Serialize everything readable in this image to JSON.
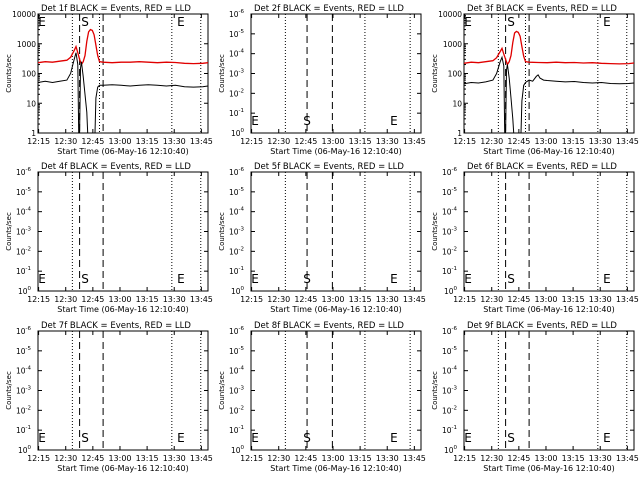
{
  "chart_data": [
    {
      "type": "line",
      "title": "Det 1f BLACK = Events, RED = LLD",
      "xlabel": "Start Time (06-May-16 12:10:40)",
      "ylabel": "Counts/sec",
      "yscale": "log",
      "xticks": [
        "12:15",
        "12:30",
        "12:45",
        "13:00",
        "13:15",
        "13:30",
        "13:45"
      ],
      "yticks": [
        "1",
        "10",
        "100",
        "1000",
        "10000"
      ],
      "ylim": [
        1,
        10000
      ],
      "xlim_min": [
        4,
        98
      ],
      "markers": {
        "dotted": [
          23,
          38,
          78,
          94
        ],
        "dashed": [
          27,
          40
        ],
        "S": 30,
        "E": 83
      },
      "series": [
        {
          "name": "RED",
          "color": "#e00000",
          "points": [
            [
              4,
              230
            ],
            [
              8,
              250
            ],
            [
              12,
              240
            ],
            [
              16,
              260
            ],
            [
              20,
              280
            ],
            [
              22,
              350
            ],
            [
              24,
              600
            ],
            [
              25,
              800
            ],
            [
              26,
              500
            ],
            [
              27,
              300
            ],
            [
              28,
              200
            ],
            [
              29,
              250
            ],
            [
              30,
              400
            ],
            [
              31,
              1200
            ],
            [
              32,
              2500
            ],
            [
              33,
              3000
            ],
            [
              34,
              2800
            ],
            [
              35,
              2000
            ],
            [
              36,
              900
            ],
            [
              37,
              400
            ],
            [
              38,
              250
            ],
            [
              40,
              240
            ],
            [
              45,
              230
            ],
            [
              50,
              240
            ],
            [
              55,
              240
            ],
            [
              60,
              250
            ],
            [
              65,
              240
            ],
            [
              70,
              230
            ],
            [
              75,
              240
            ],
            [
              80,
              235
            ],
            [
              85,
              220
            ],
            [
              90,
              215
            ],
            [
              95,
              220
            ],
            [
              98,
              230
            ]
          ]
        },
        {
          "name": "BLACK",
          "color": "#000000",
          "points": [
            [
              4,
              50
            ],
            [
              8,
              55
            ],
            [
              12,
              50
            ],
            [
              16,
              55
            ],
            [
              20,
              60
            ],
            [
              22,
              100
            ],
            [
              24,
              300
            ],
            [
              25,
              500
            ],
            [
              26,
              200
            ],
            [
              26.5,
              1
            ],
            [
              27,
              1
            ],
            [
              27.5,
              150
            ],
            [
              28,
              250
            ],
            [
              29,
              80
            ],
            [
              30,
              20
            ],
            [
              31,
              5
            ],
            [
              31.5,
              1
            ],
            [
              32,
              1
            ],
            [
              33,
              1
            ],
            [
              34,
              1
            ],
            [
              35,
              1
            ],
            [
              35.5,
              1
            ],
            [
              36,
              15
            ],
            [
              37,
              35
            ],
            [
              38,
              40
            ],
            [
              40,
              40
            ],
            [
              45,
              42
            ],
            [
              50,
              40
            ],
            [
              55,
              38
            ],
            [
              60,
              40
            ],
            [
              65,
              42
            ],
            [
              70,
              40
            ],
            [
              75,
              38
            ],
            [
              80,
              40
            ],
            [
              85,
              36
            ],
            [
              90,
              35
            ],
            [
              95,
              36
            ],
            [
              98,
              38
            ]
          ]
        }
      ]
    },
    {
      "type": "line",
      "title": "Det 2f BLACK = Events, RED = LLD",
      "xlabel": "Start Time (06-May-16 12:10:40)",
      "ylabel": "Counts/sec",
      "yscale": "log",
      "xticks": [
        "12:15",
        "12:30",
        "12:45",
        "13:00",
        "13:15",
        "13:30",
        "13:45"
      ],
      "yticks": [
        "10^0",
        "10^-1",
        "10^-2",
        "10^-3",
        "10^-4",
        "10^-5",
        "10^-6"
      ],
      "xlim_min": [
        4,
        98
      ],
      "markers": {
        "dotted": [
          23,
          67,
          92
        ],
        "dashed": [
          35,
          49
        ],
        "S": 35,
        "E": 83
      },
      "series": []
    },
    {
      "type": "line",
      "title": "Det 3f BLACK = Events, RED = LLD",
      "xlabel": "Start Time (06-May-16 12:10:40)",
      "ylabel": "Counts/sec",
      "yscale": "log",
      "xticks": [
        "12:15",
        "12:30",
        "12:45",
        "13:00",
        "13:15",
        "13:30",
        "13:45"
      ],
      "yticks": [
        "1",
        "10",
        "100",
        "1000",
        "10000"
      ],
      "ylim": [
        1,
        10000
      ],
      "xlim_min": [
        4,
        98
      ],
      "markers": {
        "dotted": [
          23,
          38,
          78,
          94
        ],
        "dashed": [
          27,
          40
        ],
        "S": 30,
        "E": 83
      },
      "series": [
        {
          "name": "RED",
          "color": "#e00000",
          "points": [
            [
              4,
              220
            ],
            [
              8,
              240
            ],
            [
              12,
              230
            ],
            [
              16,
              250
            ],
            [
              20,
              270
            ],
            [
              22,
              340
            ],
            [
              24,
              550
            ],
            [
              25,
              700
            ],
            [
              26,
              450
            ],
            [
              27,
              300
            ],
            [
              28,
              200
            ],
            [
              29,
              250
            ],
            [
              30,
              400
            ],
            [
              31,
              1100
            ],
            [
              32,
              2300
            ],
            [
              33,
              2600
            ],
            [
              34,
              2400
            ],
            [
              35,
              1800
            ],
            [
              36,
              800
            ],
            [
              37,
              380
            ],
            [
              38,
              250
            ],
            [
              40,
              240
            ],
            [
              45,
              235
            ],
            [
              50,
              230
            ],
            [
              55,
              240
            ],
            [
              60,
              230
            ],
            [
              65,
              235
            ],
            [
              70,
              225
            ],
            [
              75,
              230
            ],
            [
              80,
              220
            ],
            [
              85,
              215
            ],
            [
              90,
              210
            ],
            [
              95,
              215
            ],
            [
              98,
              225
            ]
          ]
        },
        {
          "name": "BLACK",
          "color": "#000000",
          "points": [
            [
              4,
              45
            ],
            [
              8,
              50
            ],
            [
              12,
              48
            ],
            [
              16,
              52
            ],
            [
              20,
              60
            ],
            [
              22,
              100
            ],
            [
              24,
              250
            ],
            [
              25,
              350
            ],
            [
              26,
              180
            ],
            [
              26.5,
              1
            ],
            [
              27,
              1
            ],
            [
              27.5,
              130
            ],
            [
              28,
              200
            ],
            [
              29,
              70
            ],
            [
              30,
              15
            ],
            [
              31,
              3
            ],
            [
              31.5,
              1
            ],
            [
              32,
              1
            ],
            [
              33,
              1
            ],
            [
              34,
              1
            ],
            [
              35,
              1
            ],
            [
              35.5,
              1
            ],
            [
              36,
              12
            ],
            [
              37,
              40
            ],
            [
              38,
              50
            ],
            [
              40,
              60
            ],
            [
              42,
              55
            ],
            [
              44,
              80
            ],
            [
              45,
              90
            ],
            [
              46,
              70
            ],
            [
              48,
              60
            ],
            [
              50,
              58
            ],
            [
              55,
              55
            ],
            [
              60,
              52
            ],
            [
              65,
              54
            ],
            [
              70,
              50
            ],
            [
              75,
              48
            ],
            [
              80,
              50
            ],
            [
              85,
              46
            ],
            [
              90,
              45
            ],
            [
              95,
              46
            ],
            [
              98,
              48
            ]
          ]
        }
      ]
    },
    {
      "type": "line",
      "title": "Det 4f BLACK = Events, RED = LLD",
      "xlabel": "Start Time (06-May-16 12:10:40)",
      "ylabel": "Counts/sec",
      "yscale": "log",
      "xticks": [
        "12:15",
        "12:30",
        "12:45",
        "13:00",
        "13:15",
        "13:30",
        "13:45"
      ],
      "yticks": [
        "10^0",
        "10^-1",
        "10^-2",
        "10^-3",
        "10^-4",
        "10^-5",
        "10^-6"
      ],
      "xlim_min": [
        4,
        98
      ],
      "markers": {
        "dotted": [
          23,
          78,
          94
        ],
        "dashed": [
          27,
          40
        ],
        "S": 30,
        "E": 83
      },
      "series": []
    },
    {
      "type": "line",
      "title": "Det 5f BLACK = Events, RED = LLD",
      "xlabel": "Start Time (06-May-16 12:10:40)",
      "ylabel": "Counts/sec",
      "yscale": "log",
      "xticks": [
        "12:15",
        "12:30",
        "12:45",
        "13:00",
        "13:15",
        "13:30",
        "13:45"
      ],
      "yticks": [
        "10^0",
        "10^-1",
        "10^-2",
        "10^-3",
        "10^-4",
        "10^-5",
        "10^-6"
      ],
      "xlim_min": [
        4,
        98
      ],
      "markers": {
        "dotted": [
          23,
          67,
          92
        ],
        "dashed": [
          35,
          49
        ],
        "S": 35,
        "E": 83
      },
      "series": []
    },
    {
      "type": "line",
      "title": "Det 6f BLACK = Events, RED = LLD",
      "xlabel": "Start Time (06-May-16 12:10:40)",
      "ylabel": "Counts/sec",
      "yscale": "log",
      "xticks": [
        "12:15",
        "12:30",
        "12:45",
        "13:00",
        "13:15",
        "13:30",
        "13:45"
      ],
      "yticks": [
        "10^0",
        "10^-1",
        "10^-2",
        "10^-3",
        "10^-4",
        "10^-5",
        "10^-6"
      ],
      "xlim_min": [
        4,
        98
      ],
      "markers": {
        "dotted": [
          23,
          78,
          94
        ],
        "dashed": [
          27,
          40
        ],
        "S": 30,
        "E": 83
      },
      "series": []
    },
    {
      "type": "line",
      "title": "Det 7f BLACK = Events, RED = LLD",
      "xlabel": "Start Time (06-May-16 12:10:40)",
      "ylabel": "Counts/sec",
      "yscale": "log",
      "xticks": [
        "12:15",
        "12:30",
        "12:45",
        "13:00",
        "13:15",
        "13:30",
        "13:45"
      ],
      "yticks": [
        "10^0",
        "10^-1",
        "10^-2",
        "10^-3",
        "10^-4",
        "10^-5",
        "10^-6"
      ],
      "xlim_min": [
        4,
        98
      ],
      "markers": {
        "dotted": [
          23,
          78,
          94
        ],
        "dashed": [
          27,
          40
        ],
        "S": 30,
        "E": 83
      },
      "series": []
    },
    {
      "type": "line",
      "title": "Det 8f BLACK = Events, RED = LLD",
      "xlabel": "Start Time (06-May-16 12:10:40)",
      "ylabel": "Counts/sec",
      "yscale": "log",
      "xticks": [
        "12:15",
        "12:30",
        "12:45",
        "13:00",
        "13:15",
        "13:30",
        "13:45"
      ],
      "yticks": [
        "10^0",
        "10^-1",
        "10^-2",
        "10^-3",
        "10^-4",
        "10^-5",
        "10^-6"
      ],
      "xlim_min": [
        4,
        98
      ],
      "markers": {
        "dotted": [
          23,
          67,
          92
        ],
        "dashed": [
          35,
          49
        ],
        "S": 35,
        "E": 83
      },
      "series": []
    },
    {
      "type": "line",
      "title": "Det 9f BLACK = Events, RED = LLD",
      "xlabel": "Start Time (06-May-16 12:10:40)",
      "ylabel": "Counts/sec",
      "yscale": "log",
      "xticks": [
        "12:15",
        "12:30",
        "12:45",
        "13:00",
        "13:15",
        "13:30",
        "13:45"
      ],
      "yticks": [
        "10^0",
        "10^-1",
        "10^-2",
        "10^-3",
        "10^-4",
        "10^-5",
        "10^-6"
      ],
      "xlim_min": [
        4,
        98
      ],
      "markers": {
        "dotted": [
          23,
          78,
          94
        ],
        "dashed": [
          27,
          40
        ],
        "S": 30,
        "E": 83
      },
      "series": []
    }
  ]
}
